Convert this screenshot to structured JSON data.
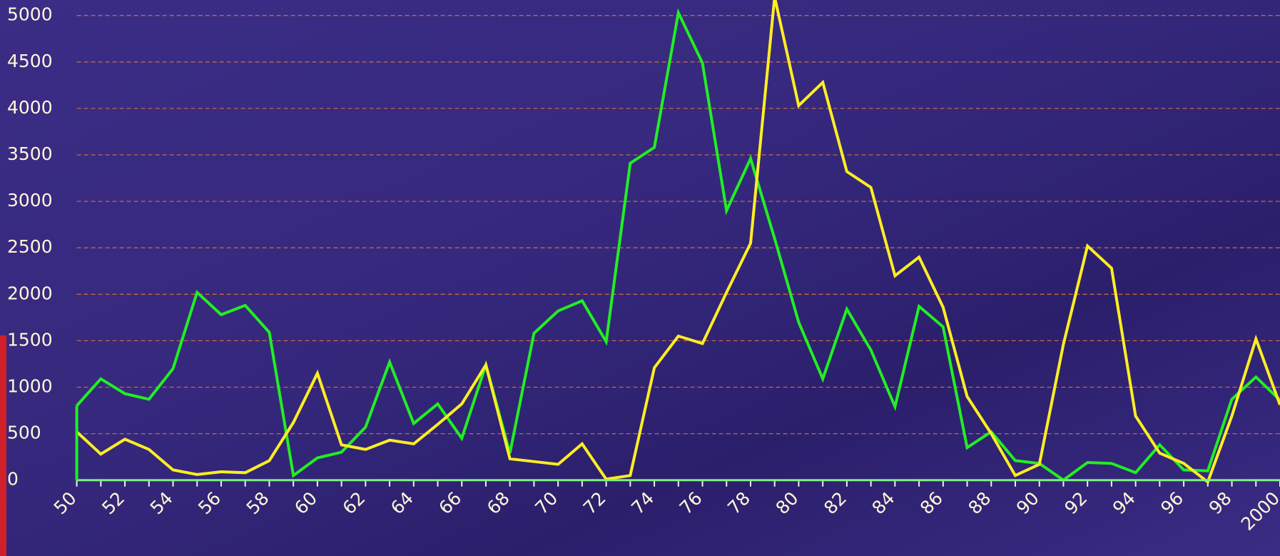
{
  "chart_data": {
    "type": "line",
    "x": [
      1950,
      1951,
      1952,
      1953,
      1954,
      1955,
      1956,
      1957,
      1958,
      1959,
      1960,
      1961,
      1962,
      1963,
      1964,
      1965,
      1966,
      1967,
      1968,
      1969,
      1970,
      1971,
      1972,
      1973,
      1974,
      1975,
      1976,
      1977,
      1978,
      1979,
      1980,
      1981,
      1982,
      1983,
      1984,
      1985,
      1986,
      1987,
      1988,
      1989,
      1990,
      1991,
      1992,
      1993,
      1994,
      1995,
      1996,
      1997,
      1998,
      1999,
      2000
    ],
    "series": [
      {
        "color": "#22ee22",
        "values": [
          800,
          1090,
          930,
          870,
          1200,
          2020,
          1780,
          1880,
          1590,
          50,
          240,
          300,
          570,
          1270,
          610,
          820,
          450,
          1240,
          290,
          1580,
          1820,
          1930,
          1490,
          3410,
          3580,
          5030,
          4490,
          2900,
          3460,
          2600,
          1700,
          1090,
          1840,
          1400,
          790,
          1870,
          1650,
          350,
          520,
          210,
          180,
          0,
          190,
          180,
          80,
          380,
          110,
          100,
          870,
          1110,
          860
        ]
      },
      {
        "color": "#ffee22",
        "values": [
          520,
          280,
          440,
          330,
          110,
          60,
          90,
          80,
          210,
          620,
          1150,
          380,
          330,
          430,
          390,
          600,
          820,
          1240,
          230,
          200,
          170,
          390,
          10,
          50,
          1210,
          1550,
          1470,
          2020,
          2550,
          5200,
          4030,
          4280,
          3320,
          3150,
          2200,
          2400,
          1860,
          900,
          500,
          50,
          170,
          1460,
          2520,
          2280,
          690,
          290,
          180,
          -20,
          690,
          1520,
          810
        ]
      }
    ],
    "xlim": [
      1950,
      2000
    ],
    "xticks": [
      {
        "value": 1950,
        "label": "50"
      },
      {
        "value": 1952,
        "label": "52"
      },
      {
        "value": 1954,
        "label": "54"
      },
      {
        "value": 1956,
        "label": "56"
      },
      {
        "value": 1958,
        "label": "58"
      },
      {
        "value": 1960,
        "label": "60"
      },
      {
        "value": 1962,
        "label": "62"
      },
      {
        "value": 1964,
        "label": "64"
      },
      {
        "value": 1966,
        "label": "66"
      },
      {
        "value": 1968,
        "label": "68"
      },
      {
        "value": 1970,
        "label": "70"
      },
      {
        "value": 1972,
        "label": "72"
      },
      {
        "value": 1974,
        "label": "74"
      },
      {
        "value": 1976,
        "label": "76"
      },
      {
        "value": 1978,
        "label": "78"
      },
      {
        "value": 1980,
        "label": "80"
      },
      {
        "value": 1982,
        "label": "82"
      },
      {
        "value": 1984,
        "label": "84"
      },
      {
        "value": 1986,
        "label": "86"
      },
      {
        "value": 1988,
        "label": "88"
      },
      {
        "value": 1990,
        "label": "90"
      },
      {
        "value": 1992,
        "label": "92"
      },
      {
        "value": 1994,
        "label": "94"
      },
      {
        "value": 1996,
        "label": "96"
      },
      {
        "value": 1998,
        "label": "98"
      },
      2000
    ],
    "x_minor_ticks": [
      1951,
      1953,
      1955,
      1957,
      1959,
      1961,
      1963,
      1965,
      1967,
      1969,
      1971,
      1973,
      1975,
      1977,
      1979,
      1981,
      1983,
      1985,
      1987,
      1989,
      1991,
      1993,
      1995,
      1997,
      1999
    ],
    "ylim": [
      0,
      5000
    ],
    "yticks": [
      0,
      500,
      1000,
      1500,
      2000,
      2500,
      3000,
      3500,
      4000,
      4500,
      5000
    ],
    "grid": true
  }
}
